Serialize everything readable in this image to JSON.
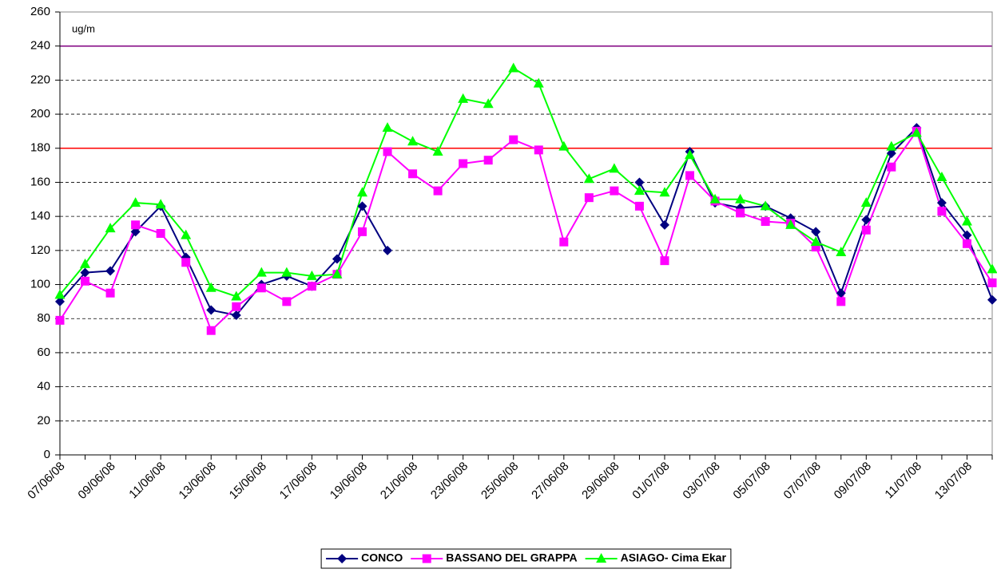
{
  "chart_data": {
    "type": "line",
    "annotation": "ug/m",
    "categories": [
      "07/06/08",
      null,
      "09/06/08",
      null,
      "11/06/08",
      null,
      "13/06/08",
      null,
      "15/06/08",
      null,
      "17/06/08",
      null,
      "19/06/08",
      null,
      "21/06/08",
      null,
      "23/06/08",
      null,
      "25/06/08",
      null,
      "27/06/08",
      null,
      "29/06/08",
      null,
      "01/07/08",
      null,
      "03/07/08",
      null,
      "05/07/08",
      null,
      "07/07/08",
      null,
      "09/07/08",
      null,
      "11/07/08",
      null,
      "13/07/08",
      null
    ],
    "series": [
      {
        "name": "CONCO",
        "color": "#000080",
        "marker": "diamond",
        "values": [
          90,
          107,
          108,
          131,
          146,
          116,
          85,
          82,
          100,
          105,
          99,
          115,
          146,
          120,
          null,
          null,
          null,
          null,
          null,
          null,
          null,
          null,
          null,
          160,
          135,
          178,
          148,
          145,
          146,
          139,
          131,
          95,
          138,
          177,
          192,
          148,
          129,
          91
        ]
      },
      {
        "name": "BASSANO DEL GRAPPA",
        "color": "#ff00ff",
        "marker": "square",
        "values": [
          79,
          102,
          95,
          135,
          130,
          113,
          73,
          87,
          98,
          90,
          99,
          106,
          131,
          178,
          165,
          155,
          171,
          173,
          185,
          179,
          125,
          151,
          155,
          146,
          114,
          164,
          149,
          142,
          137,
          136,
          122,
          90,
          132,
          169,
          190,
          143,
          124,
          101
        ]
      },
      {
        "name": "ASIAGO- Cima Ekar",
        "color": "#00ff00",
        "marker": "triangle",
        "values": [
          94,
          112,
          133,
          148,
          147,
          129,
          98,
          93,
          107,
          107,
          105,
          106,
          154,
          192,
          184,
          178,
          209,
          206,
          227,
          218,
          181,
          162,
          168,
          155,
          154,
          176,
          150,
          150,
          146,
          135,
          125,
          119,
          148,
          181,
          189,
          163,
          137,
          109
        ]
      }
    ],
    "reference_lines": [
      {
        "value": 240,
        "color": "#800080"
      },
      {
        "value": 180,
        "color": "#ff0000"
      }
    ],
    "ylim": [
      0,
      260
    ],
    "yticks": [
      0,
      20,
      40,
      60,
      80,
      100,
      120,
      140,
      160,
      180,
      200,
      220,
      240,
      260
    ],
    "grid": true,
    "legend": "bottom"
  }
}
